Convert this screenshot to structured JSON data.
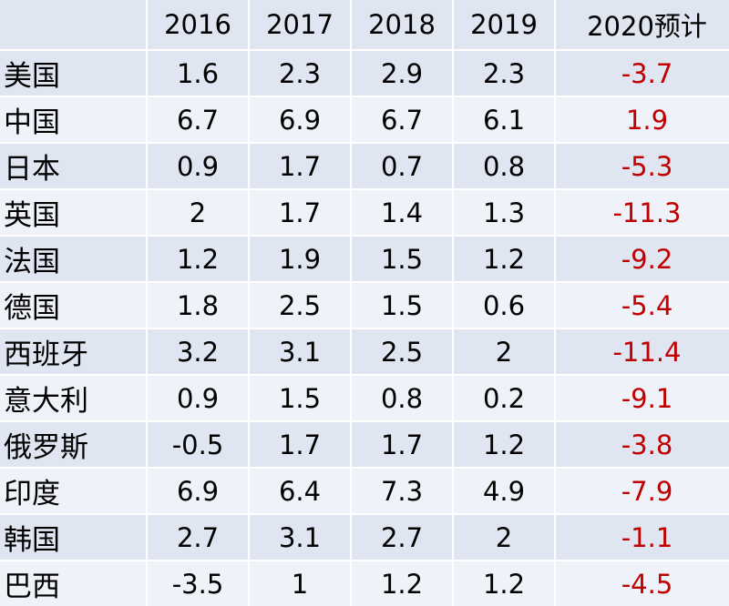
{
  "table": {
    "columns": [
      "2016",
      "2017",
      "2018",
      "2019",
      "2020预计"
    ],
    "rows": [
      {
        "country": "美国",
        "values": [
          "1.6",
          "2.3",
          "2.9",
          "2.3",
          "-3.7"
        ]
      },
      {
        "country": "中国",
        "values": [
          "6.7",
          "6.9",
          "6.7",
          "6.1",
          "1.9"
        ]
      },
      {
        "country": "日本",
        "values": [
          "0.9",
          "1.7",
          "0.7",
          "0.8",
          "-5.3"
        ]
      },
      {
        "country": "英国",
        "values": [
          "2",
          "1.7",
          "1.4",
          "1.3",
          "-11.3"
        ]
      },
      {
        "country": "法国",
        "values": [
          "1.2",
          "1.9",
          "1.5",
          "1.2",
          "-9.2"
        ]
      },
      {
        "country": "德国",
        "values": [
          "1.8",
          "2.5",
          "1.5",
          "0.6",
          "-5.4"
        ]
      },
      {
        "country": "西班牙",
        "values": [
          "3.2",
          "3.1",
          "2.5",
          "2",
          "-11.4"
        ]
      },
      {
        "country": "意大利",
        "values": [
          "0.9",
          "1.5",
          "0.8",
          "0.2",
          "-9.1"
        ]
      },
      {
        "country": "俄罗斯",
        "values": [
          "-0.5",
          "1.7",
          "1.7",
          "1.2",
          "-3.8"
        ]
      },
      {
        "country": "印度",
        "values": [
          "6.9",
          "6.4",
          "7.3",
          "4.9",
          "-7.9"
        ]
      },
      {
        "country": "韩国",
        "values": [
          "2.7",
          "3.1",
          "2.7",
          "2",
          "-1.1"
        ]
      },
      {
        "country": "巴西",
        "values": [
          "-3.5",
          "1",
          "1.2",
          "1.2",
          "-4.5"
        ]
      }
    ],
    "colors": {
      "header_bg": "#dfe5f1",
      "row_bg_dark": "#dfe5f1",
      "row_bg_light": "#eff2f8",
      "forecast_text": "#c00000"
    }
  }
}
